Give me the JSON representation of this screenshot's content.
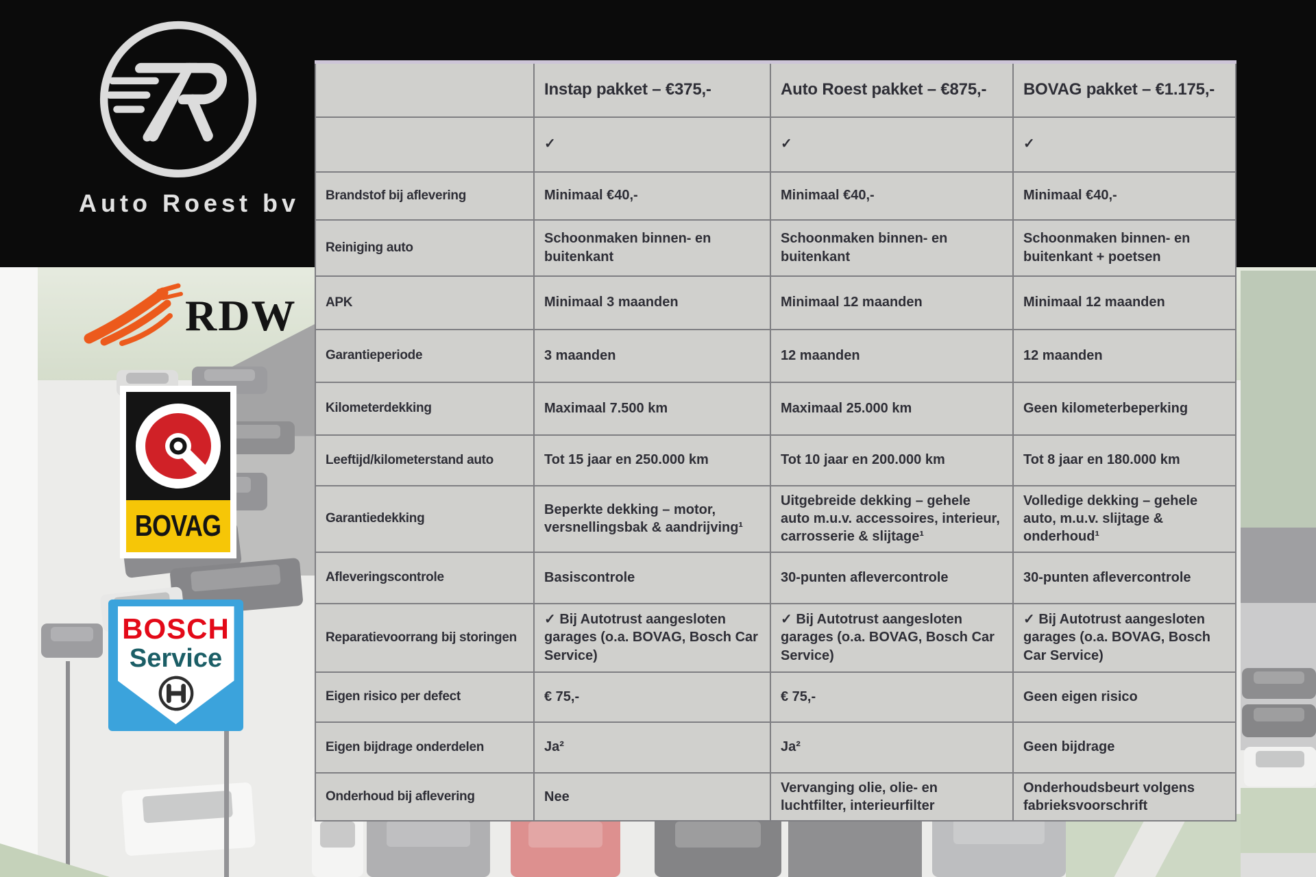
{
  "branding": {
    "company": "Auto Roest bv",
    "monogram": "7R"
  },
  "partners": {
    "rdw": {
      "text": "RDW"
    },
    "bovag": {
      "text": "BOVAG"
    },
    "bosch": {
      "line1": "BOSCH",
      "line2": "Service"
    }
  },
  "table": {
    "columns": [
      "",
      "Instap pakket – €375,-",
      "Auto Roest pakket – €875,-",
      "BOVAG pakket – €1.175,-"
    ],
    "rows": [
      {
        "label": "",
        "values": [
          "✓",
          "✓",
          "✓"
        ]
      },
      {
        "label": "Brandstof bij aflevering",
        "values": [
          "Minimaal €40,-",
          "Minimaal €40,-",
          "Minimaal €40,-"
        ]
      },
      {
        "label": "Reiniging auto",
        "values": [
          "Schoonmaken binnen- en buitenkant",
          "Schoonmaken binnen- en buitenkant",
          "Schoonmaken binnen- en buitenkant + poetsen"
        ]
      },
      {
        "label": "APK",
        "values": [
          "Minimaal 3 maanden",
          "Minimaal 12 maanden",
          "Minimaal 12 maanden"
        ]
      },
      {
        "label": "Garantieperiode",
        "values": [
          "3 maanden",
          "12 maanden",
          "12 maanden"
        ]
      },
      {
        "label": "Kilometerdekking",
        "values": [
          "Maximaal 7.500 km",
          "Maximaal 25.000 km",
          "Geen kilometerbeperking"
        ]
      },
      {
        "label": "Leeftijd/kilometerstand auto",
        "values": [
          "Tot 15 jaar en 250.000 km",
          "Tot 10 jaar en 200.000 km",
          "Tot 8 jaar en 180.000 km"
        ]
      },
      {
        "label": "Garantiedekking",
        "values": [
          "Beperkte dekking – motor, versnellingsbak & aandrijving¹",
          "Uitgebreide dekking – gehele auto m.u.v. accessoires, interieur, carrosserie & slijtage¹",
          "Volledige dekking – gehele auto, m.u.v. slijtage & onderhoud¹"
        ]
      },
      {
        "label": "Afleveringscontrole",
        "values": [
          "Basiscontrole",
          "30-punten aflevercontrole",
          "30-punten aflevercontrole"
        ]
      },
      {
        "label": "Reparatievoorrang bij storingen",
        "values": [
          "✓ Bij Autotrust aangesloten garages (o.a. BOVAG, Bosch Car Service)",
          "✓ Bij Autotrust aangesloten garages (o.a. BOVAG, Bosch Car Service)",
          "✓ Bij Autotrust aangesloten garages (o.a. BOVAG, Bosch Car Service)"
        ]
      },
      {
        "label": "Eigen risico per defect",
        "values": [
          "€ 75,-",
          "€ 75,-",
          "Geen eigen risico"
        ]
      },
      {
        "label": "Eigen bijdrage onderdelen",
        "values": [
          "Ja²",
          "Ja²",
          "Geen bijdrage"
        ]
      },
      {
        "label": "Onderhoud bij aflevering",
        "values": [
          "Nee",
          "Vervanging olie, olie- en luchtfilter, interieurfilter",
          "Onderhoudsbeurt volgens fabrieksvoorschrift"
        ]
      }
    ]
  },
  "colors": {
    "table_background": "#d0d0cd",
    "table_top_border": "#cdc5d8",
    "text": "#2e2e36",
    "rdw_orange": "#ec5a1c",
    "bovag_red": "#d02127",
    "bovag_yellow": "#f6c607",
    "bosch_blue": "#3ba3dc",
    "bosch_red": "#e30918",
    "bosch_teal": "#1b5e66"
  }
}
